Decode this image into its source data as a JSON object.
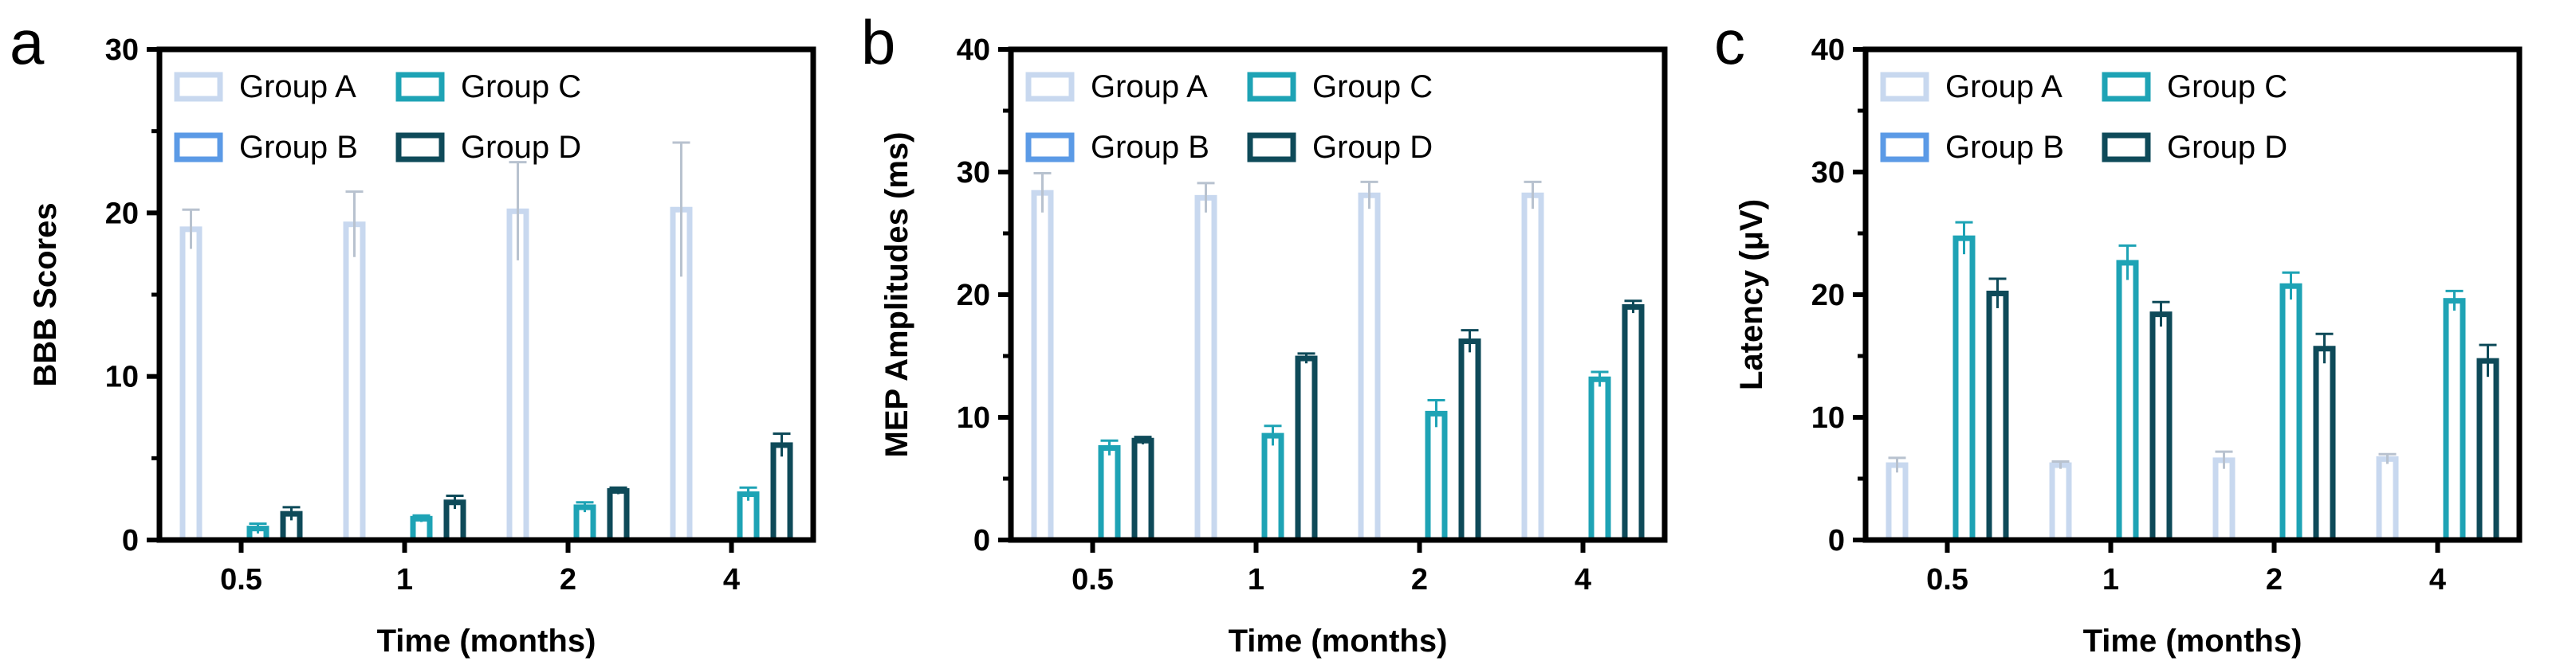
{
  "chart_data": [
    {
      "panel": "a",
      "type": "bar",
      "ylabel": "BBB Scores",
      "xlabel": "Time (months)",
      "categories": [
        "0.5",
        "1",
        "2",
        "4"
      ],
      "ylim": [
        0,
        30
      ],
      "yticks": [
        0,
        10,
        20,
        30
      ],
      "yticks_labels": [
        "0",
        "10",
        "20",
        "30"
      ],
      "legend": "top-left",
      "series": [
        {
          "name": "Group A",
          "color": "#c8d8ef",
          "values": [
            19.0,
            19.3,
            20.1,
            20.2
          ],
          "errors": [
            1.2,
            2.0,
            3.0,
            4.1
          ]
        },
        {
          "name": "Group B",
          "color": "#5b9ae6",
          "values": [
            0,
            0,
            0,
            0
          ],
          "errors": [
            0,
            0,
            0,
            0
          ]
        },
        {
          "name": "Group C",
          "color": "#1ea3b5",
          "values": [
            0.7,
            1.3,
            2.0,
            2.8
          ],
          "errors": [
            0.3,
            0.2,
            0.3,
            0.4
          ]
        },
        {
          "name": "Group D",
          "color": "#0e4a59",
          "values": [
            1.6,
            2.3,
            3.0,
            5.8
          ],
          "errors": [
            0.4,
            0.4,
            0.2,
            0.7
          ]
        }
      ]
    },
    {
      "panel": "b",
      "type": "bar",
      "ylabel": "MEP Amplitudes (ms)",
      "xlabel": "Time (months)",
      "categories": [
        "0.5",
        "1",
        "2",
        "4"
      ],
      "ylim": [
        0,
        40
      ],
      "yticks": [
        0,
        10,
        20,
        30,
        40
      ],
      "yticks_labels": [
        "0",
        "10",
        "20",
        "30",
        "40"
      ],
      "legend": "top-left",
      "series": [
        {
          "name": "Group A",
          "color": "#c8d8ef",
          "values": [
            28.3,
            27.9,
            28.1,
            28.1
          ],
          "errors": [
            1.6,
            1.2,
            1.1,
            1.1
          ]
        },
        {
          "name": "Group B",
          "color": "#5b9ae6",
          "values": [
            0,
            0,
            0,
            0
          ],
          "errors": [
            0,
            0,
            0,
            0
          ]
        },
        {
          "name": "Group C",
          "color": "#1ea3b5",
          "values": [
            7.5,
            8.5,
            10.3,
            13.1
          ],
          "errors": [
            0.6,
            0.8,
            1.1,
            0.6
          ]
        },
        {
          "name": "Group D",
          "color": "#0e4a59",
          "values": [
            8.1,
            14.8,
            16.2,
            19.0
          ],
          "errors": [
            0.3,
            0.4,
            0.9,
            0.5
          ]
        }
      ]
    },
    {
      "panel": "c",
      "type": "bar",
      "ylabel": "Latency (μV)",
      "xlabel": "Time (months)",
      "categories": [
        "0.5",
        "1",
        "2",
        "4"
      ],
      "ylim": [
        0,
        40
      ],
      "yticks": [
        0,
        10,
        20,
        30,
        40
      ],
      "yticks_labels": [
        "0",
        "10",
        "20",
        "30",
        "40"
      ],
      "legend": "top-left",
      "series": [
        {
          "name": "Group A",
          "color": "#c8d8ef",
          "values": [
            6.1,
            6.1,
            6.5,
            6.6
          ],
          "errors": [
            0.6,
            0.3,
            0.7,
            0.4
          ]
        },
        {
          "name": "Group B",
          "color": "#5b9ae6",
          "values": [
            0,
            0,
            0,
            0
          ],
          "errors": [
            0,
            0,
            0,
            0
          ]
        },
        {
          "name": "Group C",
          "color": "#1ea3b5",
          "values": [
            24.6,
            22.6,
            20.7,
            19.5
          ],
          "errors": [
            1.3,
            1.4,
            1.1,
            0.8
          ]
        },
        {
          "name": "Group D",
          "color": "#0e4a59",
          "values": [
            20.1,
            18.4,
            15.6,
            14.6
          ],
          "errors": [
            1.2,
            1.0,
            1.2,
            1.3
          ]
        }
      ]
    }
  ]
}
